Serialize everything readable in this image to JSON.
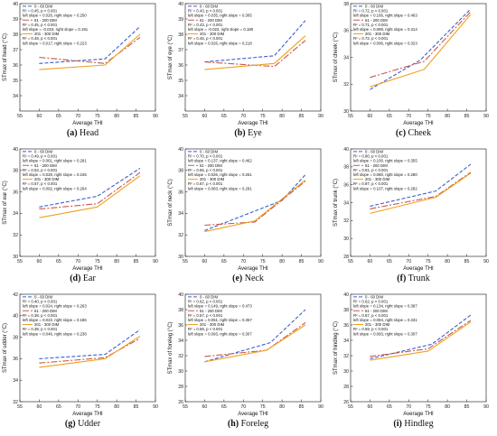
{
  "colors": {
    "series_0_60": "#3a5fcd",
    "series_61_200": "#c85a4a",
    "series_201_300": "#f0a020",
    "axis": "#333333"
  },
  "chart_data": [
    {
      "type": "line",
      "label": "(a)",
      "caption": "Head",
      "xlabel": "Average THI",
      "ylabel": "STmax of head (°C)",
      "xlim": [
        55,
        90
      ],
      "ylim": [
        33,
        40
      ],
      "xticks": [
        "55",
        "60",
        "65",
        "70",
        "75",
        "80",
        "85",
        "90"
      ],
      "yticks": [
        "34",
        "35",
        "36",
        "37",
        "38",
        "39",
        "40"
      ],
      "legend": [
        {
          "name": "0 - 60 DIM",
          "r2": "R² = 0.45, p < 0.001",
          "slopes": "left slope = 0.026, right slope = 0.250"
        },
        {
          "name": "61 - 200 DIM",
          "r2": "R² = 0.45, p < 0.001",
          "slopes": "left slope = -0.023, right slope = 0.191"
        },
        {
          "name": "201 - 300 DIM",
          "r2": "R² = 0.48, p < 0.001",
          "slopes": "left slope = 0.017, right slope = 0.223"
        }
      ],
      "series": [
        {
          "name": "0 - 60 DIM",
          "x": [
            60,
            77,
            86
          ],
          "y": [
            36.1,
            36.4,
            38.5
          ]
        },
        {
          "name": "61 - 200 DIM",
          "x": [
            60,
            77,
            86
          ],
          "y": [
            36.5,
            36.1,
            37.8
          ]
        },
        {
          "name": "201 - 300 DIM",
          "x": [
            60,
            77,
            86
          ],
          "y": [
            35.7,
            36.0,
            38.0
          ]
        }
      ]
    },
    {
      "type": "line",
      "label": "(b)",
      "caption": "Eye",
      "xlabel": "Average THI",
      "ylabel": "STmax of eye (°C)",
      "xlim": [
        55,
        90
      ],
      "ylim": [
        33,
        40
      ],
      "xticks": [
        "55",
        "60",
        "65",
        "70",
        "75",
        "80",
        "85",
        "90"
      ],
      "yticks": [
        "34",
        "35",
        "36",
        "37",
        "38",
        "39",
        "40"
      ],
      "legend": [
        {
          "name": "0 - 60 DIM",
          "r2": "R² = 0.43, p < 0.001",
          "slopes": "left slope = 0.035, right slope = 0.305"
        },
        {
          "name": "61 - 200 DIM",
          "r2": "R² = 0.43, p < 0.001",
          "slopes": "left slope = -0.022, right slope = 0.180"
        },
        {
          "name": "201 - 300 DIM",
          "r2": "R² = 0.45, p < 0.001",
          "slopes": "left slope = 0.026, right slope = 0.218"
        }
      ],
      "series": [
        {
          "name": "0 - 60 DIM",
          "x": [
            60,
            78,
            86
          ],
          "y": [
            36.2,
            36.6,
            38.9
          ]
        },
        {
          "name": "61 - 200 DIM",
          "x": [
            60,
            78,
            86
          ],
          "y": [
            36.2,
            35.9,
            37.6
          ]
        },
        {
          "name": "201 - 300 DIM",
          "x": [
            60,
            78,
            86
          ],
          "y": [
            35.7,
            36.1,
            37.9
          ]
        }
      ]
    },
    {
      "type": "line",
      "label": "(c)",
      "caption": "Cheek",
      "xlabel": "Average THI",
      "ylabel": "STmax of cheek (°C)",
      "xlim": [
        55,
        90
      ],
      "ylim": [
        30,
        38
      ],
      "xticks": [
        "55",
        "60",
        "65",
        "70",
        "75",
        "80",
        "85",
        "90"
      ],
      "yticks": [
        "30",
        "32",
        "34",
        "36",
        "38"
      ],
      "legend": [
        {
          "name": "0 - 60 DIM",
          "r2": "R² = 0.72, p < 0.001",
          "slopes": "left slope = 0.166, right slope = 0.463"
        },
        {
          "name": "61 - 200 DIM",
          "r2": "R² = 0.71, p < 0.001",
          "slopes": "left slope = 0.089, right slope = 0.314"
        },
        {
          "name": "201 - 300 DIM",
          "r2": "R² = 0.72, p < 0.001",
          "slopes": "left slope = 0.096, right slope = 0.323"
        }
      ],
      "series": [
        {
          "name": "0 - 60 DIM",
          "x": [
            60,
            73,
            86
          ],
          "y": [
            31.6,
            33.8,
            37.6
          ]
        },
        {
          "name": "61 - 200 DIM",
          "x": [
            60,
            74,
            86
          ],
          "y": [
            32.5,
            33.7,
            37.4
          ]
        },
        {
          "name": "201 - 300 DIM",
          "x": [
            60,
            74,
            86
          ],
          "y": [
            31.8,
            33.1,
            37.2
          ]
        }
      ]
    },
    {
      "type": "line",
      "label": "(d)",
      "caption": "Ear",
      "xlabel": "Average THI",
      "ylabel": "STmax of ear (°C)",
      "xlim": [
        55,
        90
      ],
      "ylim": [
        30,
        40
      ],
      "xticks": [
        "55",
        "60",
        "65",
        "70",
        "75",
        "80",
        "85",
        "90"
      ],
      "yticks": [
        "30",
        "32",
        "34",
        "36",
        "38",
        "40"
      ],
      "legend": [
        {
          "name": "0 - 60 DIM",
          "r2": "R² = 0.49, p < 0.001",
          "slopes": "left slope = 0.061, right slope = 0.291"
        },
        {
          "name": "61 - 200 DIM",
          "r2": "R² = 0.53, p < 0.001",
          "slopes": "left slope = 0.028, right slope = 0.245"
        },
        {
          "name": "201 - 300 DIM",
          "r2": "R² = 0.57, p < 0.001",
          "slopes": "left slope = 0.092, right slope = 0.264"
        }
      ],
      "series": [
        {
          "name": "0 - 60 DIM",
          "x": [
            60,
            75,
            86
          ],
          "y": [
            34.6,
            35.6,
            38.2
          ]
        },
        {
          "name": "61 - 200 DIM",
          "x": [
            60,
            75,
            86
          ],
          "y": [
            34.4,
            34.9,
            37.8
          ]
        },
        {
          "name": "201 - 300 DIM",
          "x": [
            60,
            75,
            86
          ],
          "y": [
            33.6,
            34.6,
            37.5
          ]
        }
      ]
    },
    {
      "type": "line",
      "label": "(e)",
      "caption": "Neck",
      "xlabel": "Average THI",
      "ylabel": "STmax of neck (°C)",
      "xlim": [
        55,
        90
      ],
      "ylim": [
        30,
        40
      ],
      "xticks": [
        "55",
        "60",
        "65",
        "70",
        "75",
        "80",
        "85",
        "90"
      ],
      "yticks": [
        "30",
        "32",
        "34",
        "36",
        "38",
        "40"
      ],
      "legend": [
        {
          "name": "0 - 60 DIM",
          "r2": "R² = 0.70, p < 0.001",
          "slopes": "left slope = 0.137, right slope = 0.462"
        },
        {
          "name": "61 - 200 DIM",
          "r2": "R² = 0.65, p < 0.001",
          "slopes": "left slope = 0.026, right slope = 0.261"
        },
        {
          "name": "201 - 300 DIM",
          "r2": "R² = 0.67, p < 0.001",
          "slopes": "left slope = 0.083, right slope = 0.291"
        }
      ],
      "series": [
        {
          "name": "0 - 60 DIM",
          "x": [
            60,
            80,
            86
          ],
          "y": [
            32.4,
            35.2,
            37.6
          ]
        },
        {
          "name": "61 - 200 DIM",
          "x": [
            60,
            73,
            86
          ],
          "y": [
            32.9,
            33.2,
            37.0
          ]
        },
        {
          "name": "201 - 300 DIM",
          "x": [
            60,
            73,
            86
          ],
          "y": [
            32.3,
            33.3,
            37.1
          ]
        }
      ]
    },
    {
      "type": "line",
      "label": "(f)",
      "caption": "Trunk",
      "xlabel": "Average THI",
      "ylabel": "STmax of trunk (°C)",
      "xlim": [
        55,
        90
      ],
      "ylim": [
        28,
        40
      ],
      "xticks": [
        "55",
        "60",
        "65",
        "70",
        "75",
        "80",
        "85",
        "90"
      ],
      "yticks": [
        "28",
        "30",
        "32",
        "34",
        "36",
        "38",
        "40"
      ],
      "legend": [
        {
          "name": "0 - 60 DIM",
          "r2": "R² = 0.80, p < 0.001",
          "slopes": "left slope = 0.100, right slope = 0.355"
        },
        {
          "name": "61 - 200 DIM",
          "r2": "R² = 0.81, p < 0.001",
          "slopes": "left slope = 0.080, right slope = 0.280"
        },
        {
          "name": "201 - 300 DIM",
          "r2": "R² = 0.87, p < 0.001",
          "slopes": "left slope = 0.107, right slope = 0.282"
        }
      ],
      "series": [
        {
          "name": "0 - 60 DIM",
          "x": [
            60,
            77,
            86
          ],
          "y": [
            33.6,
            35.3,
            38.3
          ]
        },
        {
          "name": "61 - 200 DIM",
          "x": [
            60,
            77,
            86
          ],
          "y": [
            33.3,
            34.7,
            37.4
          ]
        },
        {
          "name": "201 - 300 DIM",
          "x": [
            60,
            77,
            86
          ],
          "y": [
            32.8,
            34.6,
            37.3
          ]
        }
      ]
    },
    {
      "type": "line",
      "label": "(g)",
      "caption": "Udder",
      "xlabel": "Average THI",
      "ylabel": "STmax of udder (°C)",
      "xlim": [
        55,
        90
      ],
      "ylim": [
        32,
        42
      ],
      "xticks": [
        "55",
        "60",
        "65",
        "70",
        "75",
        "80",
        "85",
        "90"
      ],
      "yticks": [
        "32",
        "34",
        "36",
        "38",
        "40",
        "42"
      ],
      "legend": [
        {
          "name": "0 - 60 DIM",
          "r2": "R² = 0.40, p < 0.001",
          "slopes": "left slope = 0.024, right slope = 0.263"
        },
        {
          "name": "61 - 200 DIM",
          "r2": "R² = 0.38, p < 0.001",
          "slopes": "left slope = 0.022, right slope = 0.186"
        },
        {
          "name": "201 - 300 DIM",
          "r2": "R² = 0.38, p < 0.001",
          "slopes": "left slope = 0.046, right slope = 0.238"
        }
      ],
      "series": [
        {
          "name": "0 - 60 DIM",
          "x": [
            60,
            77,
            86
          ],
          "y": [
            36.0,
            36.4,
            38.7
          ]
        },
        {
          "name": "61 - 200 DIM",
          "x": [
            60,
            77,
            86
          ],
          "y": [
            35.6,
            36.1,
            37.9
          ]
        },
        {
          "name": "201 - 300 DIM",
          "x": [
            60,
            77,
            86
          ],
          "y": [
            35.2,
            36.0,
            38.1
          ]
        }
      ]
    },
    {
      "type": "line",
      "label": "(h)",
      "caption": "Foreleg",
      "xlabel": "Average THI",
      "ylabel": "STmax of foreleg (°C)",
      "xlim": [
        55,
        90
      ],
      "ylim": [
        26,
        40
      ],
      "xticks": [
        "55",
        "60",
        "65",
        "70",
        "75",
        "80",
        "85",
        "90"
      ],
      "yticks": [
        "26",
        "28",
        "30",
        "32",
        "34",
        "36",
        "38",
        "40"
      ],
      "legend": [
        {
          "name": "0 - 60 DIM",
          "r2": "R² = 0.62, p < 0.001",
          "slopes": "left slope = 0.149, right slope = 0.473"
        },
        {
          "name": "61 - 200 DIM",
          "r2": "R² = 0.57, p < 0.001",
          "slopes": "left slope = 0.051, right slope = 0.357"
        },
        {
          "name": "201 - 300 DIM",
          "r2": "R² = 0.58, p < 0.001",
          "slopes": "left slope = 0.093, right slope = 0.307"
        }
      ],
      "series": [
        {
          "name": "0 - 60 DIM",
          "x": [
            60,
            77,
            86
          ],
          "y": [
            31.2,
            33.7,
            38.0
          ]
        },
        {
          "name": "61 - 200 DIM",
          "x": [
            60,
            76,
            86
          ],
          "y": [
            31.9,
            32.7,
            36.3
          ]
        },
        {
          "name": "201 - 300 DIM",
          "x": [
            60,
            76,
            86
          ],
          "y": [
            31.2,
            32.7,
            36.0
          ]
        }
      ]
    },
    {
      "type": "line",
      "label": "(i)",
      "caption": "Hindleg",
      "xlabel": "Average THI",
      "ylabel": "STmax of hindleg (°C)",
      "xlim": [
        55,
        90
      ],
      "ylim": [
        26,
        40
      ],
      "xticks": [
        "55",
        "60",
        "65",
        "70",
        "75",
        "80",
        "85",
        "90"
      ],
      "yticks": [
        "26",
        "28",
        "30",
        "32",
        "34",
        "36",
        "38",
        "40"
      ],
      "legend": [
        {
          "name": "0 - 60 DIM",
          "r2": "R² = 0.62, p < 0.001",
          "slopes": "left slope = 0.134, right slope = 0.387"
        },
        {
          "name": "61 - 200 DIM",
          "r2": "R² = 0.57, p < 0.001",
          "slopes": "left slope = 0.084, right slope = 0.331"
        },
        {
          "name": "201 - 300 DIM",
          "r2": "R² = 0.59, p < 0.001",
          "slopes": "left slope = 0.093, right slope = 0.307"
        }
      ],
      "series": [
        {
          "name": "0 - 60 DIM",
          "x": [
            60,
            76,
            86
          ],
          "y": [
            31.6,
            33.5,
            37.3
          ]
        },
        {
          "name": "61 - 200 DIM",
          "x": [
            60,
            75,
            86
          ],
          "y": [
            31.9,
            32.9,
            36.6
          ]
        },
        {
          "name": "201 - 300 DIM",
          "x": [
            60,
            75,
            86
          ],
          "y": [
            31.4,
            32.6,
            36.4
          ]
        }
      ]
    }
  ]
}
